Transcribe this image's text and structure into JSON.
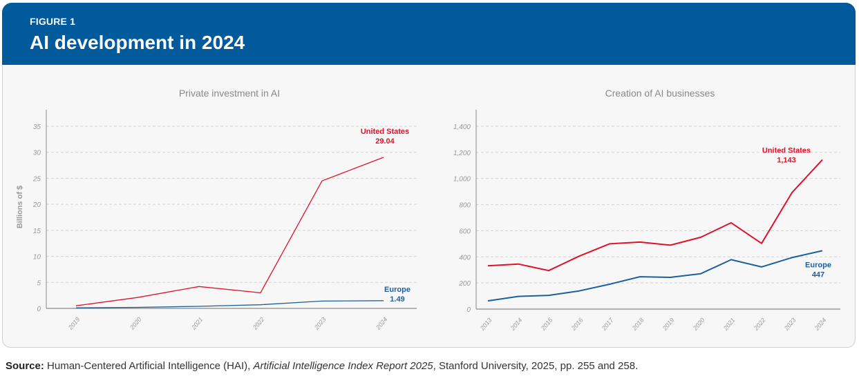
{
  "header": {
    "figure_label": "FIGURE 1",
    "title": "AI development in 2024",
    "background_color": "#005a9c"
  },
  "source": {
    "label": "Source:",
    "text_before": "Human-Centered Artificial Intelligence (HAI), ",
    "italic_text": "Artificial Intelligence Index Report 2025",
    "text_after": ", Stanford University, 2025, pp. 255 and 258."
  },
  "chart_data": [
    {
      "type": "line",
      "title": "Private investment in AI",
      "xlabel": "",
      "ylabel": "Billions of $",
      "x": [
        "2019",
        "2020",
        "2021",
        "2022",
        "2023",
        "2024"
      ],
      "ylim": [
        0,
        35
      ],
      "yticks": [
        0,
        5,
        10,
        15,
        20,
        25,
        30,
        35
      ],
      "ytick_labels": [
        "0",
        "5",
        "10",
        "15",
        "20",
        "25",
        "30",
        "35"
      ],
      "grid": true,
      "series": [
        {
          "name": "United States",
          "color": "#e0112b",
          "values": [
            0.5,
            2.1,
            4.2,
            3.0,
            24.5,
            29.04
          ],
          "end_label": "29.04"
        },
        {
          "name": "Europe",
          "color": "#1a5f9e",
          "values": [
            0.1,
            0.2,
            0.4,
            0.7,
            1.4,
            1.49
          ],
          "end_label": "1.49"
        }
      ]
    },
    {
      "type": "line",
      "title": "Creation of AI businesses",
      "xlabel": "",
      "ylabel": "",
      "x": [
        "2013",
        "2014",
        "2015",
        "2016",
        "2017",
        "2018",
        "2019",
        "2020",
        "2021",
        "2022",
        "2023",
        "2024"
      ],
      "ylim": [
        0,
        1400
      ],
      "yticks": [
        0,
        200,
        400,
        600,
        800,
        1000,
        1200,
        1400
      ],
      "ytick_labels": [
        "0",
        "200",
        "400",
        "600",
        "800",
        "1,000",
        "1,200",
        "1,400"
      ],
      "grid": true,
      "series": [
        {
          "name": "United States",
          "color": "#e0112b",
          "values": [
            332,
            345,
            295,
            405,
            500,
            513,
            489,
            550,
            661,
            503,
            892,
            1143
          ],
          "end_label": "1,143"
        },
        {
          "name": "Europe",
          "color": "#1a5f9e",
          "values": [
            63,
            97,
            105,
            139,
            190,
            248,
            243,
            271,
            378,
            323,
            394,
            447
          ],
          "end_label": "447"
        }
      ]
    }
  ]
}
